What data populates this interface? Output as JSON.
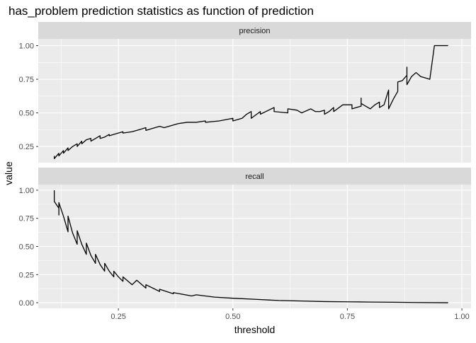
{
  "chart_data": {
    "type": "line",
    "title": "has_problem prediction statistics as function of prediction",
    "xlabel": "threshold",
    "ylabel": "value",
    "grid": true,
    "colors": {
      "line": "#000000",
      "panel_background": "#ebebeb",
      "strip_background": "#d9d9d9",
      "grid": "#ffffff"
    },
    "xlim": [
      0.075,
      1.02
    ],
    "x_ticks": [
      0.25,
      0.5,
      0.75,
      1.0
    ],
    "x_tick_labels": [
      "0.25",
      "0.50",
      "0.75",
      "1.00"
    ],
    "panels": [
      {
        "name": "precision",
        "ylim": [
          0.13,
          1.05
        ],
        "y_ticks": [
          0.25,
          0.5,
          0.75,
          1.0
        ],
        "y_tick_labels": [
          "0.25",
          "0.50",
          "0.75",
          "1.00"
        ],
        "points": [
          [
            0.11,
            0.18
          ],
          [
            0.11,
            0.16
          ],
          [
            0.12,
            0.2
          ],
          [
            0.12,
            0.18
          ],
          [
            0.13,
            0.22
          ],
          [
            0.13,
            0.2
          ],
          [
            0.14,
            0.24
          ],
          [
            0.14,
            0.22
          ],
          [
            0.15,
            0.25
          ],
          [
            0.16,
            0.27
          ],
          [
            0.16,
            0.25
          ],
          [
            0.17,
            0.29
          ],
          [
            0.17,
            0.27
          ],
          [
            0.18,
            0.3
          ],
          [
            0.19,
            0.31
          ],
          [
            0.19,
            0.29
          ],
          [
            0.2,
            0.31
          ],
          [
            0.21,
            0.33
          ],
          [
            0.21,
            0.31
          ],
          [
            0.22,
            0.32
          ],
          [
            0.23,
            0.34
          ],
          [
            0.23,
            0.33
          ],
          [
            0.24,
            0.34
          ],
          [
            0.25,
            0.35
          ],
          [
            0.26,
            0.36
          ],
          [
            0.26,
            0.35
          ],
          [
            0.28,
            0.36
          ],
          [
            0.3,
            0.38
          ],
          [
            0.31,
            0.39
          ],
          [
            0.31,
            0.37
          ],
          [
            0.33,
            0.39
          ],
          [
            0.34,
            0.4
          ],
          [
            0.35,
            0.39
          ],
          [
            0.37,
            0.41
          ],
          [
            0.38,
            0.42
          ],
          [
            0.4,
            0.43
          ],
          [
            0.42,
            0.43
          ],
          [
            0.44,
            0.44
          ],
          [
            0.44,
            0.43
          ],
          [
            0.47,
            0.44
          ],
          [
            0.5,
            0.46
          ],
          [
            0.5,
            0.44
          ],
          [
            0.52,
            0.46
          ],
          [
            0.53,
            0.49
          ],
          [
            0.54,
            0.51
          ],
          [
            0.54,
            0.46
          ],
          [
            0.56,
            0.51
          ],
          [
            0.56,
            0.49
          ],
          [
            0.59,
            0.54
          ],
          [
            0.59,
            0.51
          ],
          [
            0.62,
            0.5
          ],
          [
            0.62,
            0.53
          ],
          [
            0.64,
            0.52
          ],
          [
            0.65,
            0.5
          ],
          [
            0.67,
            0.53
          ],
          [
            0.68,
            0.51
          ],
          [
            0.69,
            0.51
          ],
          [
            0.7,
            0.52
          ],
          [
            0.7,
            0.49
          ],
          [
            0.71,
            0.51
          ],
          [
            0.72,
            0.54
          ],
          [
            0.72,
            0.51
          ],
          [
            0.74,
            0.56
          ],
          [
            0.76,
            0.56
          ],
          [
            0.76,
            0.53
          ],
          [
            0.78,
            0.55
          ],
          [
            0.78,
            0.61
          ],
          [
            0.78,
            0.57
          ],
          [
            0.8,
            0.53
          ],
          [
            0.81,
            0.56
          ],
          [
            0.82,
            0.58
          ],
          [
            0.82,
            0.54
          ],
          [
            0.83,
            0.56
          ],
          [
            0.84,
            0.67
          ],
          [
            0.84,
            0.53
          ],
          [
            0.85,
            0.6
          ],
          [
            0.86,
            0.66
          ],
          [
            0.86,
            0.73
          ],
          [
            0.87,
            0.74
          ],
          [
            0.88,
            0.78
          ],
          [
            0.88,
            0.84
          ],
          [
            0.88,
            0.71
          ],
          [
            0.89,
            0.77
          ],
          [
            0.9,
            0.8
          ],
          [
            0.91,
            0.77
          ],
          [
            0.92,
            0.76
          ],
          [
            0.93,
            0.75
          ],
          [
            0.94,
            1.0
          ],
          [
            0.97,
            1.0
          ]
        ]
      },
      {
        "name": "recall",
        "ylim": [
          -0.05,
          1.05
        ],
        "y_ticks": [
          0.0,
          0.25,
          0.5,
          0.75,
          1.0
        ],
        "y_tick_labels": [
          "0.00",
          "0.25",
          "0.50",
          "0.75",
          "1.00"
        ],
        "points": [
          [
            0.11,
            1.0
          ],
          [
            0.11,
            0.9
          ],
          [
            0.12,
            0.84
          ],
          [
            0.12,
            0.78
          ],
          [
            0.12,
            0.89
          ],
          [
            0.13,
            0.77
          ],
          [
            0.14,
            0.63
          ],
          [
            0.14,
            0.77
          ],
          [
            0.15,
            0.62
          ],
          [
            0.16,
            0.52
          ],
          [
            0.16,
            0.64
          ],
          [
            0.17,
            0.52
          ],
          [
            0.18,
            0.43
          ],
          [
            0.18,
            0.53
          ],
          [
            0.19,
            0.42
          ],
          [
            0.2,
            0.35
          ],
          [
            0.2,
            0.43
          ],
          [
            0.21,
            0.34
          ],
          [
            0.22,
            0.28
          ],
          [
            0.22,
            0.35
          ],
          [
            0.23,
            0.28
          ],
          [
            0.24,
            0.23
          ],
          [
            0.24,
            0.28
          ],
          [
            0.25,
            0.23
          ],
          [
            0.26,
            0.19
          ],
          [
            0.26,
            0.23
          ],
          [
            0.28,
            0.16
          ],
          [
            0.29,
            0.2
          ],
          [
            0.31,
            0.13
          ],
          [
            0.31,
            0.16
          ],
          [
            0.34,
            0.1
          ],
          [
            0.34,
            0.12
          ],
          [
            0.37,
            0.08
          ],
          [
            0.37,
            0.09
          ],
          [
            0.41,
            0.06
          ],
          [
            0.42,
            0.07
          ],
          [
            0.46,
            0.05
          ],
          [
            0.5,
            0.04
          ],
          [
            0.55,
            0.03
          ],
          [
            0.6,
            0.02
          ],
          [
            0.65,
            0.015
          ],
          [
            0.7,
            0.01
          ],
          [
            0.75,
            0.008
          ],
          [
            0.8,
            0.006
          ],
          [
            0.85,
            0.004
          ],
          [
            0.9,
            0.002
          ],
          [
            0.97,
            0.0
          ]
        ]
      }
    ]
  }
}
